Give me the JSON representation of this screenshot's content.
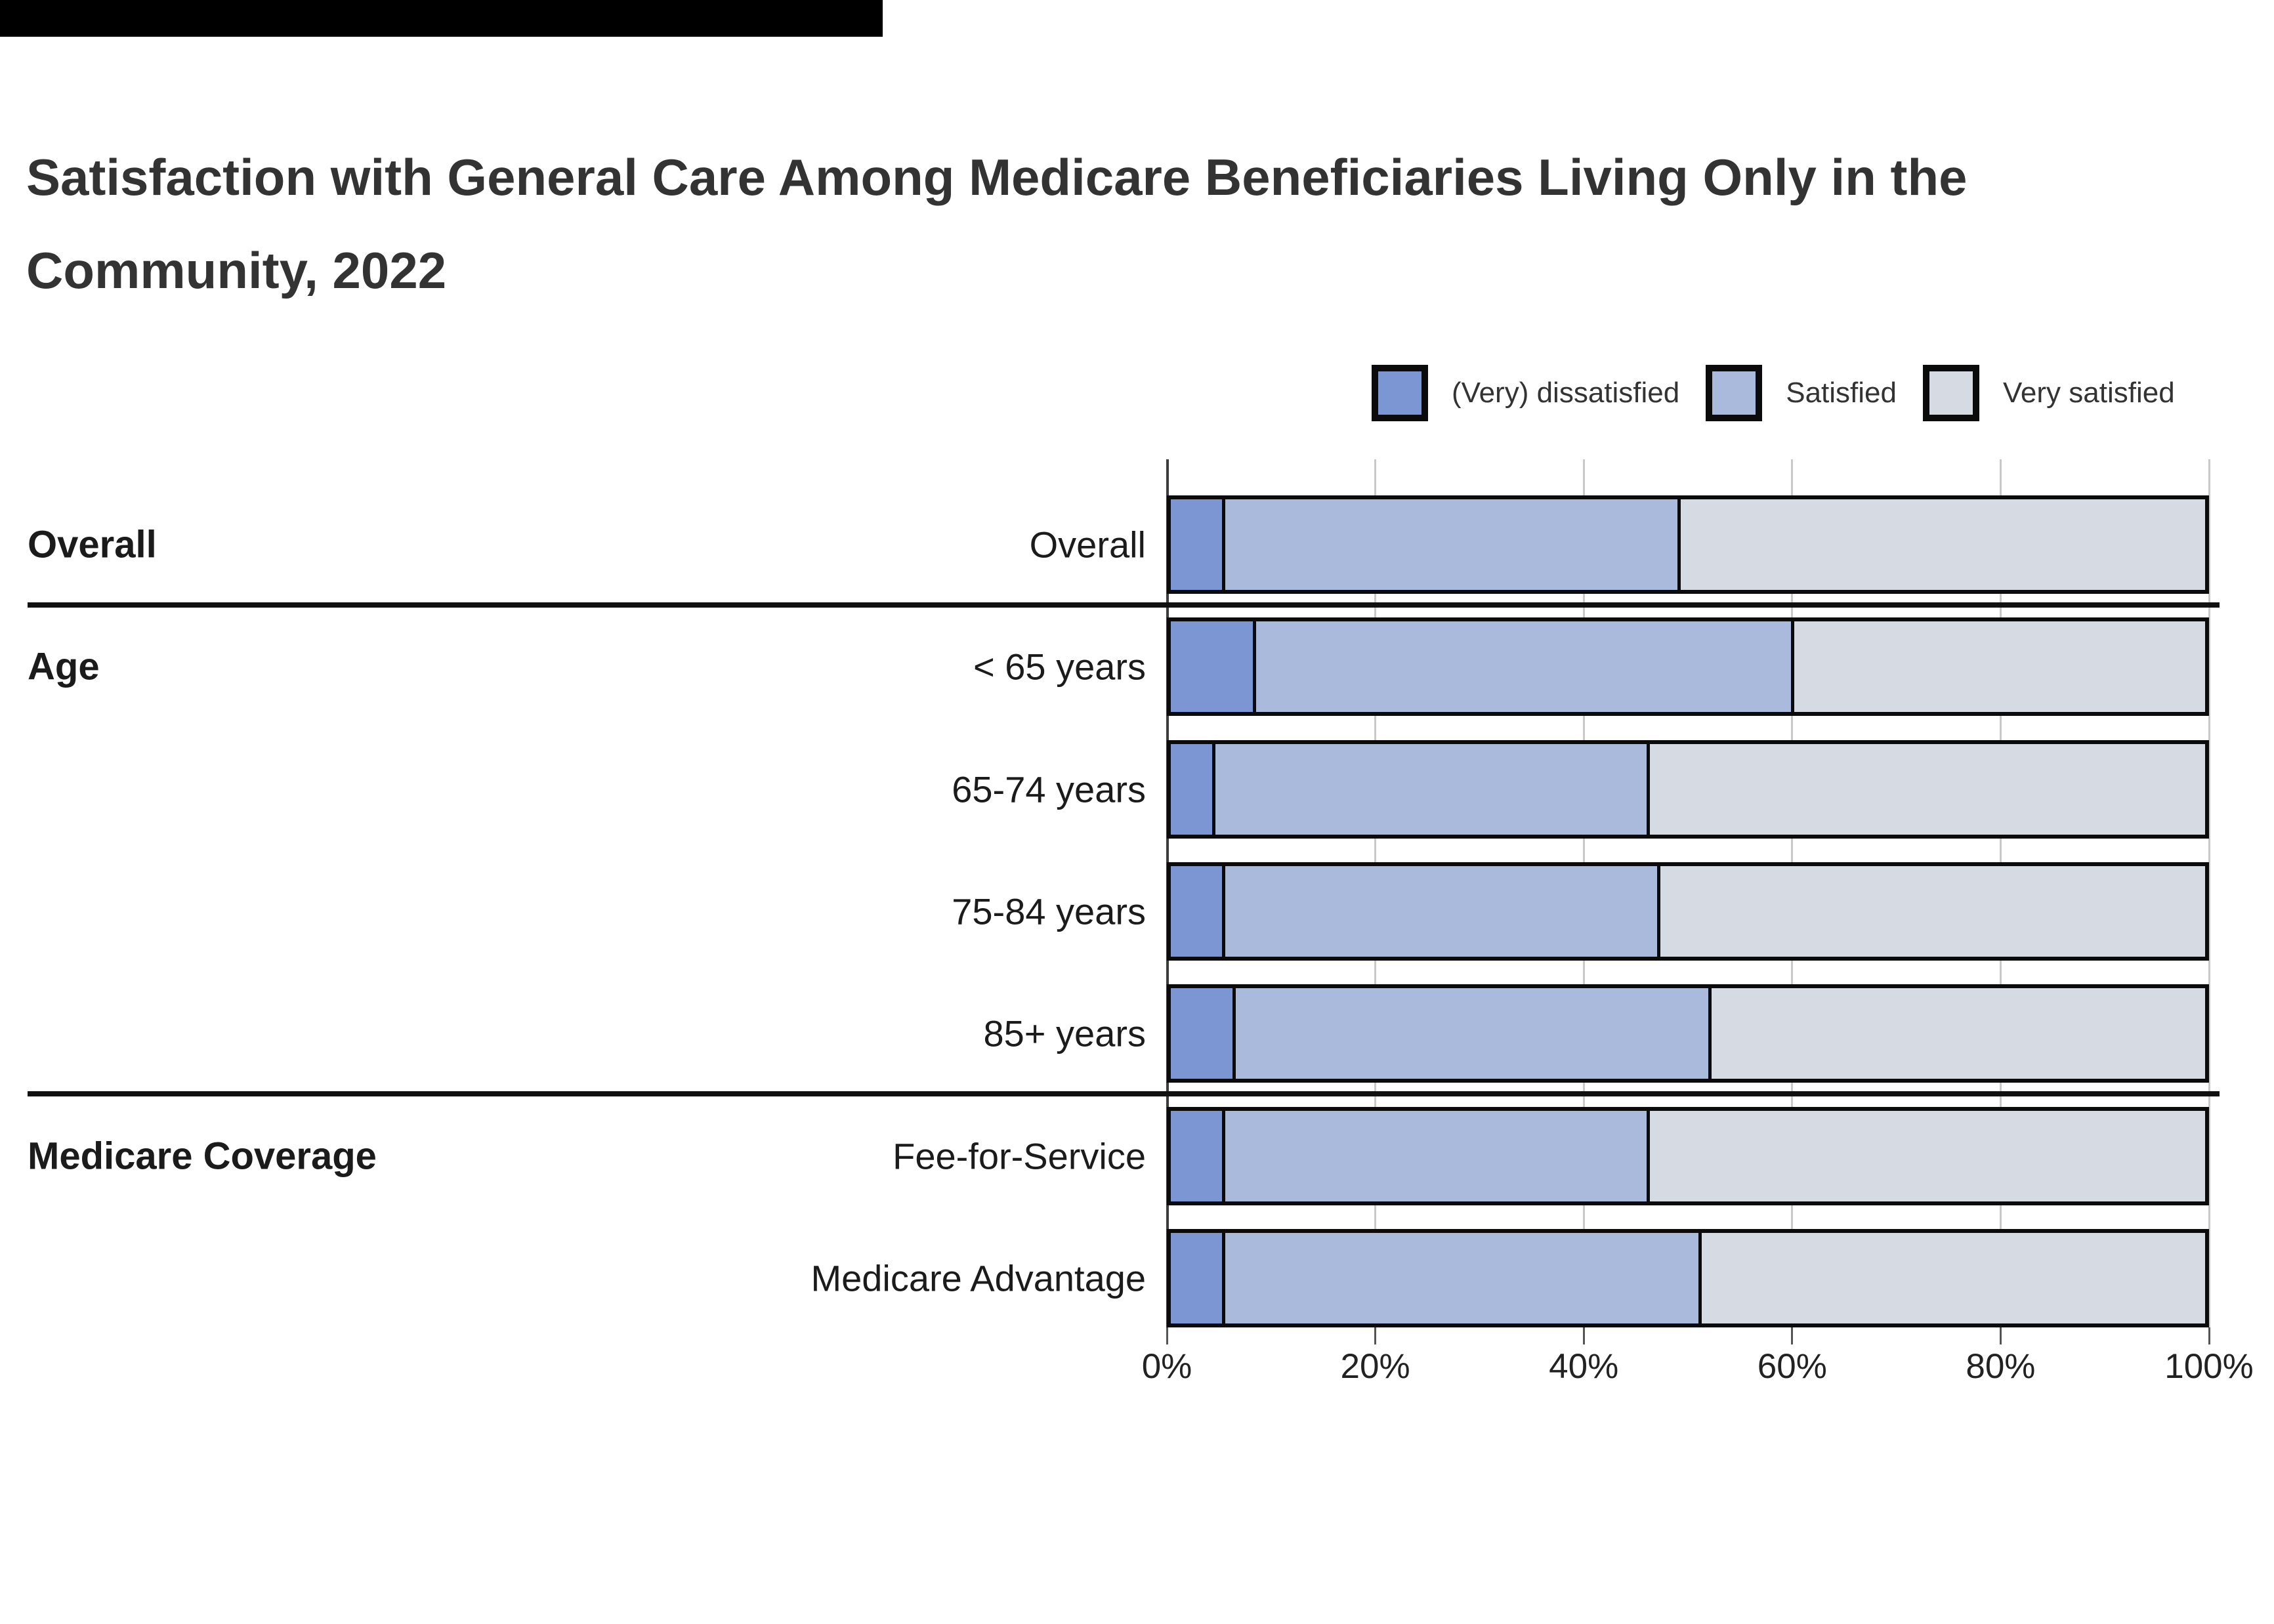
{
  "title": "Satisfaction with General Care Among Medicare Beneficiaries Living Only in the Community, 2022",
  "legend": [
    {
      "label": "(Very) dissatisfied",
      "color": "#7B96D2"
    },
    {
      "label": "Satisfied",
      "color": "#A9BADC"
    },
    {
      "label": "Very satisfied",
      "color": "#D5DAE3"
    }
  ],
  "chart_data": {
    "type": "bar",
    "orientation": "horizontal-stacked",
    "title": "Satisfaction with General Care Among Medicare Beneficiaries Living Only in the Community, 2022",
    "categories": [
      "Overall",
      "< 65 years",
      "65-74 years",
      "75-84 years",
      "85+ years",
      "Fee-for-Service",
      "Medicare Advantage"
    ],
    "groups": [
      {
        "label": "Overall",
        "rows": [
          0
        ]
      },
      {
        "label": "Age",
        "rows": [
          1,
          2,
          3,
          4
        ]
      },
      {
        "label": "Medicare Coverage",
        "rows": [
          5,
          6
        ]
      }
    ],
    "series": [
      {
        "name": "(Very) dissatisfied",
        "color": "#7B96D2",
        "values": [
          5,
          8,
          4,
          5,
          6,
          5,
          5
        ]
      },
      {
        "name": "Satisfied",
        "color": "#A9BADC",
        "values": [
          44,
          52,
          42,
          42,
          46,
          41,
          46
        ]
      },
      {
        "name": "Very satisfied",
        "color": "#D5DAE3",
        "values": [
          51,
          40,
          54,
          53,
          48,
          54,
          49
        ]
      }
    ],
    "xlabel": "",
    "ylabel": "",
    "xlim": [
      0,
      100
    ],
    "x_ticks": [
      "0%",
      "20%",
      "40%",
      "60%",
      "80%",
      "100%"
    ],
    "x_tick_values": [
      0,
      20,
      40,
      60,
      80,
      100
    ],
    "grid": true,
    "legend_position": "top-right",
    "bar_outline_color": "#0b0b0b"
  }
}
